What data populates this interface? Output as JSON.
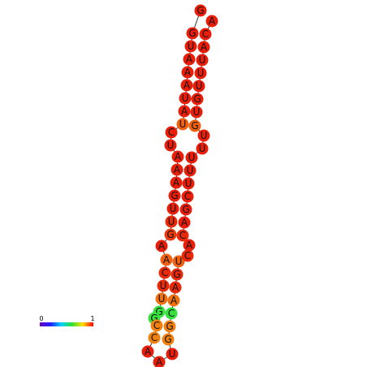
{
  "nodes": [
    {
      "label": "G",
      "color": "#e81e0a"
    },
    {
      "label": "G",
      "color": "#e81e0a"
    },
    {
      "label": "U",
      "color": "#e81e0a"
    },
    {
      "label": "A",
      "color": "#e81e0a"
    },
    {
      "label": "A",
      "color": "#e81e0a"
    },
    {
      "label": "A",
      "color": "#e81e0a"
    },
    {
      "label": "U",
      "color": "#e81e0a"
    },
    {
      "label": "A",
      "color": "#e81e0a"
    },
    {
      "label": "U",
      "color": "#f06010"
    },
    {
      "label": "C",
      "color": "#e81e0a"
    },
    {
      "label": "U",
      "color": "#e81e0a"
    },
    {
      "label": "A",
      "color": "#e81e0a"
    },
    {
      "label": "A",
      "color": "#e81e0a"
    },
    {
      "label": "A",
      "color": "#e81e0a"
    },
    {
      "label": "G",
      "color": "#e81e0a"
    },
    {
      "label": "U",
      "color": "#e81e0a"
    },
    {
      "label": "U",
      "color": "#e82a0a"
    },
    {
      "label": "G",
      "color": "#ec3a0c"
    },
    {
      "label": "A",
      "color": "#e81e0a"
    },
    {
      "label": "A",
      "color": "#f06010"
    },
    {
      "label": "C",
      "color": "#e82a0a"
    },
    {
      "label": "U",
      "color": "#e82a0a"
    },
    {
      "label": "U",
      "color": "#f07010"
    },
    {
      "label": "G",
      "color": "#38e040"
    },
    {
      "label": "G",
      "color": "#38e040"
    },
    {
      "label": "C",
      "color": "#f08010"
    },
    {
      "label": "C",
      "color": "#f08010"
    },
    {
      "label": "A",
      "color": "#e81e0a"
    },
    {
      "label": "A",
      "color": "#e81e0a"
    },
    {
      "label": "U",
      "color": "#e81e0a"
    },
    {
      "label": "G",
      "color": "#f08010"
    },
    {
      "label": "G",
      "color": "#f08010"
    },
    {
      "label": "C",
      "color": "#38e040"
    },
    {
      "label": "A",
      "color": "#f07010"
    },
    {
      "label": "A",
      "color": "#e82a0a"
    },
    {
      "label": "G",
      "color": "#e82a0a"
    },
    {
      "label": "U",
      "color": "#f06010"
    },
    {
      "label": "C",
      "color": "#e82a0a"
    },
    {
      "label": "A",
      "color": "#e81e0a"
    },
    {
      "label": "C",
      "color": "#e82a0a"
    },
    {
      "label": "A",
      "color": "#e81e0a"
    },
    {
      "label": "G",
      "color": "#e81e0a"
    },
    {
      "label": "C",
      "color": "#e81e0a"
    },
    {
      "label": "U",
      "color": "#e81e0a"
    },
    {
      "label": "U",
      "color": "#e81e0a"
    },
    {
      "label": "U",
      "color": "#e81e0a"
    },
    {
      "label": "U",
      "color": "#e81e0a"
    },
    {
      "label": "U",
      "color": "#e81e0a"
    },
    {
      "label": "G",
      "color": "#f06010"
    },
    {
      "label": "U",
      "color": "#e81e0a"
    },
    {
      "label": "G",
      "color": "#e81e0a"
    },
    {
      "label": "U",
      "color": "#e81e0a"
    },
    {
      "label": "U",
      "color": "#e81e0a"
    },
    {
      "label": "U",
      "color": "#e81e0a"
    },
    {
      "label": "A",
      "color": "#e81e0a"
    },
    {
      "label": "C",
      "color": "#e81e0a"
    },
    {
      "label": "A",
      "color": "#e81e0a"
    }
  ],
  "legend": {
    "min": 0,
    "max": 1
  }
}
